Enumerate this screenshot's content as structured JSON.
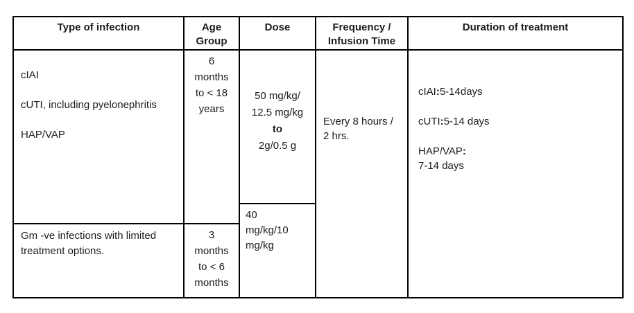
{
  "page": {
    "background": "#ffffff",
    "border_color": "#000000",
    "text_color": "#1c1c1c"
  },
  "table": {
    "headers": {
      "type": "Type of infection",
      "age": "Age Group",
      "dose": "Dose",
      "frequency": "Frequency / Infusion Time",
      "duration": "Duration of treatment"
    },
    "type_of_infection": {
      "row1": [
        "cIAI",
        "cUTI, including pyelonephritis",
        "HAP/VAP"
      ],
      "row2_lines": [
        "Gm -ve infections with limited",
        "treatment options."
      ]
    },
    "age_group": {
      "row1_lines": [
        "6",
        "months",
        "to < 18",
        "years"
      ],
      "row2_lines": [
        "3",
        "months",
        "to < 6",
        "months"
      ]
    },
    "dose": {
      "cell1_line1": "50 mg/kg/",
      "cell1_line2": "12.5 mg/kg",
      "connector": "to",
      "cell1_line3": "2g/0.5 g",
      "cell2_lines": [
        "40",
        "mg/kg/10",
        "mg/kg"
      ]
    },
    "frequency": {
      "lines": [
        "Every 8 hours /",
        "2 hrs."
      ]
    },
    "duration": {
      "colon": ":",
      "entries": [
        {
          "label": "cIAI",
          "value": "5-14days"
        },
        {
          "label": "cUTI",
          "value": "5-14 days"
        },
        {
          "label": "HAP/VAP",
          "value": "7-14 days"
        }
      ]
    }
  }
}
